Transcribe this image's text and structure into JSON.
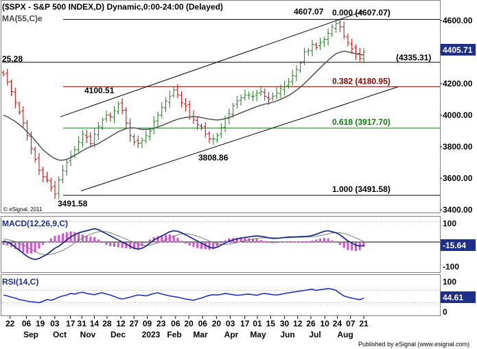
{
  "header": {
    "title": "($SPX - S&P 500 INDEX,D) Dynamic,0:00-24:00 (Delayed)",
    "ma_label": "MA(55,C)e",
    "copyright": "© eSignal, 2011",
    "footer": "Published by eSignal (www.esignal.com)"
  },
  "chart_data": [
    {
      "type": "candlestick",
      "title": "($SPX - S&P 500 INDEX,D) Dynamic,0:00-24:00 (Delayed)",
      "y_axis_ticks": [
        "4600.00",
        "4400.00",
        "4200.00",
        "4000.00",
        "3800.00",
        "3600.00",
        "3400.00"
      ],
      "ylim": [
        3400,
        4650
      ],
      "last_price": "4405.71",
      "x_date_ticks": [
        "22",
        "06",
        "19",
        "03",
        "17",
        "31",
        "14",
        "28",
        "12",
        "27",
        "09",
        "23",
        "06",
        "20",
        "06",
        "20",
        "03",
        "17",
        "01",
        "15",
        "30",
        "12",
        "26",
        "10",
        "24",
        "07",
        "21"
      ],
      "x_month_labels": [
        "Sep",
        "Oct",
        "Nov",
        "Dec",
        "2023",
        "Feb",
        "Mar",
        "Apr",
        "May",
        "Jun",
        "Jul",
        "Aug"
      ],
      "annotations": {
        "high": "4607.07",
        "low": "3491.58",
        "left_level": "25.28",
        "dec_high": "4100.51",
        "mar_low": "3808.86",
        "support_level": "(4335.31)"
      },
      "fibonacci": [
        {
          "label": "0.000 (4607.07)",
          "value": 4607.07,
          "color": "#000000"
        },
        {
          "label": "0.382 (4180.95)",
          "value": 4180.95,
          "color": "#8b0000"
        },
        {
          "label": "0.618 (3917.70)",
          "value": 3917.7,
          "color": "#0a7a0a"
        },
        {
          "label": "1.000 (3491.58)",
          "value": 3491.58,
          "color": "#000000"
        }
      ],
      "horizontal_lines": [
        4607.07,
        4335.31,
        4180.95,
        3917.7,
        3491.58
      ],
      "channel": {
        "upper": [
          [
            "mid Oct",
            4000
          ],
          [
            "late Jul",
            4680
          ]
        ],
        "lower": [
          [
            "late Oct",
            3490
          ],
          [
            "Aug",
            4180
          ]
        ]
      },
      "close_series": [
        4260,
        4210,
        4150,
        4080,
        4020,
        3950,
        3870,
        3790,
        3720,
        3650,
        3610,
        3590,
        3540,
        3500,
        3590,
        3650,
        3700,
        3740,
        3780,
        3830,
        3880,
        3860,
        3820,
        3880,
        3930,
        3970,
        4000,
        3990,
        4030,
        4070,
        4030,
        3950,
        3870,
        3830,
        3820,
        3840,
        3870,
        3900,
        3960,
        4000,
        4050,
        4090,
        4120,
        4160,
        4130,
        4080,
        4060,
        3990,
        3970,
        3940,
        3920,
        3880,
        3850,
        3850,
        3870,
        3920,
        3980,
        4010,
        4060,
        4090,
        4110,
        4130,
        4130,
        4120,
        4140,
        4150,
        4120,
        4100,
        4120,
        4140,
        4170,
        4180,
        4210,
        4250,
        4290,
        4330,
        4400,
        4410,
        4450,
        4430,
        4460,
        4480,
        4520,
        4560,
        4580,
        4560,
        4500,
        4460,
        4420,
        4390,
        4360,
        4400
      ],
      "ma_series": [
        4000,
        3990,
        3975,
        3960,
        3940,
        3920,
        3895,
        3870,
        3840,
        3810,
        3780,
        3760,
        3740,
        3725,
        3715,
        3715,
        3720,
        3730,
        3745,
        3760,
        3775,
        3790,
        3800,
        3810,
        3820,
        3835,
        3850,
        3865,
        3880,
        3895,
        3905,
        3915,
        3920,
        3920,
        3915,
        3910,
        3910,
        3912,
        3918,
        3925,
        3935,
        3945,
        3955,
        3965,
        3975,
        3980,
        3985,
        3988,
        3990,
        3990,
        3985,
        3980,
        3975,
        3972,
        3970,
        3972,
        3978,
        3985,
        3995,
        4005,
        4015,
        4025,
        4035,
        4045,
        4055,
        4063,
        4070,
        4075,
        4082,
        4090,
        4100,
        4112,
        4125,
        4140,
        4158,
        4178,
        4200,
        4225,
        4250,
        4275,
        4300,
        4325,
        4348,
        4370,
        4390,
        4400,
        4405,
        4402,
        4396,
        4390,
        4385,
        4383
      ]
    },
    {
      "type": "line",
      "title": "MACD(12,26,9,C)",
      "y_axis_ticks": [
        "100",
        "-100"
      ],
      "last_value": "-15.64",
      "ylim": [
        -110,
        110
      ],
      "macd": [
        5,
        0,
        -10,
        -25,
        -40,
        -55,
        -70,
        -80,
        -85,
        -80,
        -70,
        -60,
        -45,
        -30,
        -20,
        -5,
        10,
        25,
        35,
        45,
        50,
        55,
        60,
        65,
        60,
        50,
        40,
        30,
        20,
        10,
        0,
        -10,
        -20,
        -30,
        -35,
        -30,
        -20,
        -5,
        10,
        20,
        30,
        40,
        50,
        55,
        52,
        45,
        35,
        25,
        15,
        5,
        -5,
        -15,
        -25,
        -30,
        -25,
        -15,
        -5,
        5,
        10,
        15,
        20,
        22,
        25,
        28,
        30,
        28,
        25,
        20,
        18,
        18,
        20,
        22,
        24,
        25,
        25,
        26,
        27,
        28,
        32,
        38,
        45,
        52,
        55,
        50,
        45,
        35,
        20,
        5,
        -5,
        -15,
        -20,
        -15.64
      ],
      "signal": [
        15,
        12,
        8,
        2,
        -5,
        -15,
        -25,
        -35,
        -45,
        -55,
        -60,
        -62,
        -60,
        -55,
        -48,
        -40,
        -30,
        -18,
        -5,
        8,
        20,
        30,
        38,
        45,
        50,
        52,
        50,
        45,
        38,
        30,
        22,
        14,
        6,
        -2,
        -10,
        -15,
        -17,
        -15,
        -10,
        -4,
        3,
        11,
        19,
        28,
        35,
        40,
        40,
        38,
        34,
        28,
        21,
        13,
        5,
        -3,
        -9,
        -12,
        -12,
        -10,
        -6,
        -2,
        2,
        6,
        10,
        14,
        17,
        20,
        21,
        21,
        21,
        20,
        20,
        20,
        21,
        22,
        23,
        23,
        24,
        25,
        26,
        28,
        31,
        35,
        40,
        44,
        46,
        45,
        42,
        36,
        28,
        20,
        11,
        3
      ]
    },
    {
      "type": "line",
      "title": "RSI(14,C)",
      "y_axis_ticks": [
        "100",
        "50",
        "0"
      ],
      "last_value": "44.61",
      "ylim": [
        0,
        100
      ],
      "rsi": [
        55,
        52,
        48,
        45,
        40,
        38,
        35,
        33,
        32,
        30,
        35,
        40,
        38,
        42,
        48,
        52,
        55,
        60,
        58,
        62,
        64,
        60,
        58,
        56,
        60,
        62,
        58,
        55,
        50,
        45,
        42,
        45,
        48,
        52,
        55,
        54,
        52,
        56,
        60,
        62,
        58,
        55,
        52,
        50,
        48,
        45,
        42,
        40,
        38,
        42,
        45,
        50,
        54,
        56,
        55,
        57,
        60,
        58,
        56,
        54,
        55,
        57,
        58,
        56,
        54,
        58,
        60,
        58,
        56,
        55,
        57,
        60,
        62,
        64,
        66,
        68,
        70,
        72,
        74,
        70,
        72,
        74,
        76,
        74,
        70,
        60,
        52,
        48,
        45,
        42,
        40,
        44.61
      ]
    }
  ]
}
